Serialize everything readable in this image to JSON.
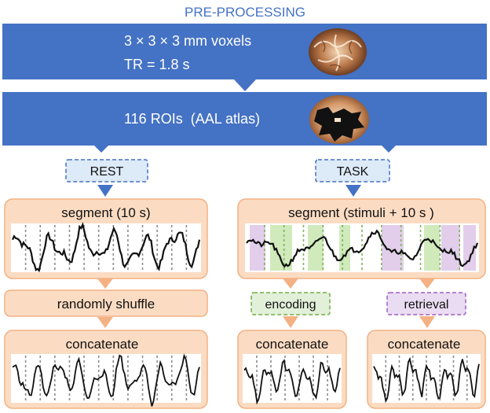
{
  "header": {
    "title": "PRE-PROCESSING"
  },
  "blue_box_1": {
    "line1": "3 × 3 × 3 mm voxels",
    "line2": "TR = 1.8 s"
  },
  "blue_box_2": {
    "label": "116 ROIs  (AAL atlas)"
  },
  "branches": {
    "rest": "REST",
    "task": "TASK"
  },
  "rest": {
    "segment": "segment (10 s)",
    "shuffle": "randomly shuffle",
    "concatenate": "concatenate"
  },
  "task": {
    "segment": "segment (stimuli + 10 s )",
    "encoding": "encoding",
    "retrieval": "retrieval",
    "concatenate_encoding": "concatenate",
    "concatenate_retrieval": "concatenate"
  },
  "colors": {
    "blue_box": "#4472c4",
    "branch_fill": "#ddeaf7",
    "peach_fill": "#fbdcc3",
    "peach_stroke": "#f4b183",
    "orange_arrow": "#f4b183",
    "encoding_band": "#c8e6b0",
    "retrieval_band": "#ddc6e8",
    "encoding_border": "#70ad47",
    "retrieval_border": "#9e5fbf"
  }
}
